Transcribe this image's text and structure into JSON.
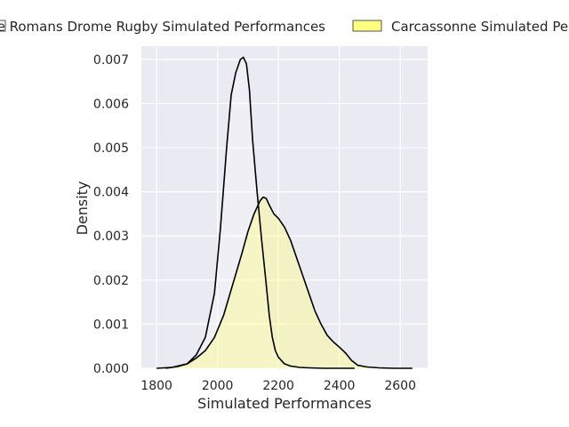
{
  "chart_data": {
    "type": "area",
    "xlabel": "Simulated Performances",
    "ylabel": "Density",
    "xlim": [
      1750,
      2690
    ],
    "ylim": [
      0,
      0.0073
    ],
    "x_ticks": [
      1800,
      2000,
      2200,
      2400,
      2600
    ],
    "x_tick_labels": [
      "1800",
      "2000",
      "2200",
      "2400",
      "2600"
    ],
    "y_ticks": [
      0,
      0.001,
      0.002,
      0.003,
      0.004,
      0.005,
      0.006,
      0.007
    ],
    "y_tick_labels": [
      "0.000",
      "0.001",
      "0.002",
      "0.003",
      "0.004",
      "0.005",
      "0.006",
      "0.007"
    ],
    "grid": true,
    "legend_position": "top",
    "background_color": "#eaeaf2",
    "series": [
      {
        "name": "Valence Romans Drome Rugby Simulated Performances",
        "legend_label": "Valence Romans Drome Rugby Simulated Performances",
        "fill": "#ffffff",
        "line_color": "#000000",
        "x": [
          1800,
          1850,
          1900,
          1930,
          1960,
          1990,
          2010,
          2030,
          2045,
          2060,
          2075,
          2085,
          2095,
          2105,
          2115,
          2130,
          2145,
          2160,
          2170,
          2180,
          2190,
          2200,
          2220,
          2240,
          2270,
          2300,
          2350,
          2400,
          2450
        ],
        "y": [
          0.0,
          2e-05,
          0.0001,
          0.0003,
          0.0007,
          0.0017,
          0.0032,
          0.005,
          0.0062,
          0.0067,
          0.007,
          0.00705,
          0.0069,
          0.0063,
          0.0052,
          0.004,
          0.0029,
          0.0019,
          0.0012,
          0.0007,
          0.0004,
          0.00025,
          0.0001,
          5e-05,
          2e-05,
          1e-05,
          0.0,
          0.0,
          0.0
        ]
      },
      {
        "name": "Carcassonne Simulated Performances",
        "legend_label": "Carcassonne Simulated Performances",
        "fill": "#ffff80",
        "line_color": "#000000",
        "x": [
          1830,
          1870,
          1900,
          1930,
          1960,
          1990,
          2020,
          2050,
          2080,
          2100,
          2120,
          2140,
          2150,
          2160,
          2170,
          2185,
          2200,
          2220,
          2240,
          2260,
          2280,
          2300,
          2320,
          2340,
          2360,
          2380,
          2400,
          2420,
          2440,
          2460,
          2490,
          2530,
          2580,
          2640
        ],
        "y": [
          0.0,
          4e-05,
          0.0001,
          0.00023,
          0.0004,
          0.0007,
          0.0012,
          0.0019,
          0.0026,
          0.0031,
          0.0035,
          0.0038,
          0.00388,
          0.00385,
          0.0037,
          0.0035,
          0.0034,
          0.0032,
          0.0029,
          0.0025,
          0.0021,
          0.0017,
          0.0013,
          0.001,
          0.00075,
          0.0006,
          0.00048,
          0.00035,
          0.00018,
          7e-05,
          3e-05,
          1e-05,
          0.0,
          0.0
        ]
      }
    ]
  }
}
